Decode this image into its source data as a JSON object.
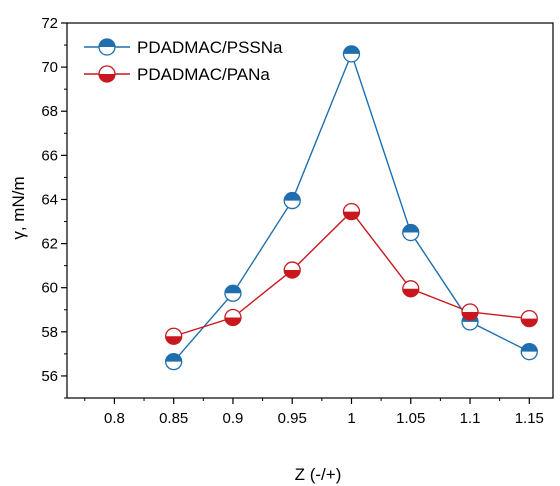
{
  "chart_data": {
    "type": "line",
    "x": [
      0.85,
      0.9,
      0.95,
      1,
      1.05,
      1.1,
      1.15
    ],
    "series": [
      {
        "name": "PDADMAC/PSSNa",
        "values": [
          56.65,
          59.75,
          63.95,
          70.6,
          62.5,
          58.45,
          57.1
        ],
        "color": "#1f6fae",
        "marker": "circle-top-half-filled"
      },
      {
        "name": "PDADMAC/PANa",
        "values": [
          57.8,
          58.65,
          60.8,
          63.45,
          59.95,
          58.9,
          58.6
        ],
        "color": "#c8181e",
        "marker": "circle-bottom-half-filled"
      }
    ],
    "xlabel": "Z (-/+)",
    "ylabel": "γ, mN/m",
    "xlim": [
      0.76,
      1.17
    ],
    "ylim": [
      55,
      72
    ],
    "xticks": [
      0.8,
      0.85,
      0.9,
      0.95,
      1,
      1.05,
      1.1,
      1.15
    ],
    "xtick_labels": [
      "0.8",
      "0.85",
      "0.9",
      "0.95",
      "1",
      "1.05",
      "1.1",
      "1.15"
    ],
    "yticks": [
      56,
      58,
      60,
      62,
      64,
      66,
      68,
      70,
      72
    ],
    "ytick_labels": [
      "56",
      "58",
      "60",
      "62",
      "64",
      "66",
      "68",
      "70",
      "72"
    ],
    "grid": false,
    "legend_position": "top-left"
  }
}
